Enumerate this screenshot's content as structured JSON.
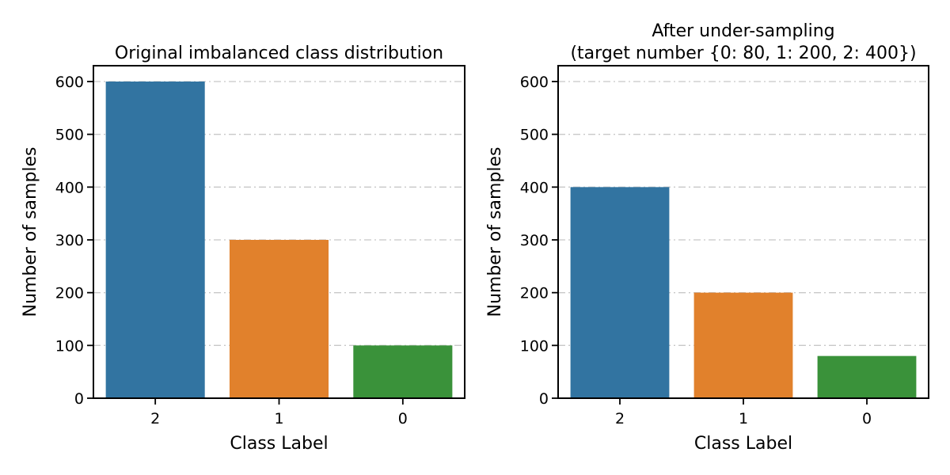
{
  "chart_data": [
    {
      "type": "bar",
      "title_lines": [
        "Original imbalanced class distribution"
      ],
      "xlabel": "Class Label",
      "ylabel": "Number of samples",
      "categories": [
        "2",
        "1",
        "0"
      ],
      "values": [
        600,
        300,
        100
      ],
      "colors": [
        "#3274a1",
        "#e1812c",
        "#3a923a"
      ],
      "ylim": [
        0,
        630
      ],
      "yticks": [
        0,
        100,
        200,
        300,
        400,
        500,
        600
      ],
      "grid": true
    },
    {
      "type": "bar",
      "title_lines": [
        "After under-sampling",
        "(target number {0: 80, 1: 200, 2: 400})"
      ],
      "xlabel": "Class Label",
      "ylabel": "Number of samples",
      "categories": [
        "2",
        "1",
        "0"
      ],
      "values": [
        400,
        200,
        80
      ],
      "colors": [
        "#3274a1",
        "#e1812c",
        "#3a923a"
      ],
      "ylim": [
        0,
        630
      ],
      "yticks": [
        0,
        100,
        200,
        300,
        400,
        500,
        600
      ],
      "grid": true
    }
  ]
}
